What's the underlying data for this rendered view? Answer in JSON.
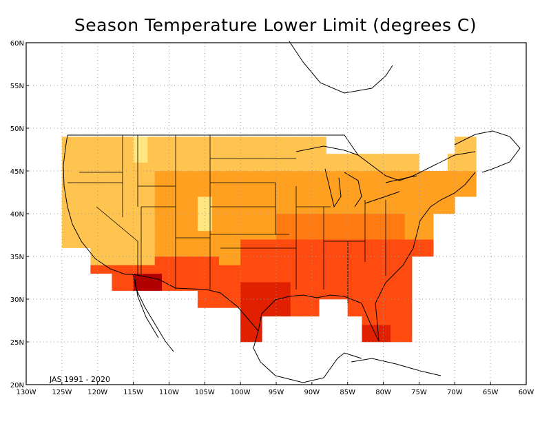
{
  "title": "Season Temperature Lower Limit (degrees C)",
  "annotation": "JAS 1991 - 2020",
  "lon_labels": [
    "130W",
    "125W",
    "120W",
    "115W",
    "110W",
    "105W",
    "100W",
    "95W",
    "90W",
    "85W",
    "80W",
    "75W",
    "70W",
    "65W",
    "60W"
  ],
  "lat_labels": [
    "20N",
    "25N",
    "30N",
    "35N",
    "40N",
    "45N",
    "50N",
    "55N",
    "60N"
  ],
  "colors": {
    "light_yellow": "#ffe680",
    "light_orange": "#ffc450",
    "orange": "#ffa020",
    "dark_orange": "#ff7a10",
    "red_orange": "#ff4a10",
    "red": "#e02000",
    "dark_red": "#b00000",
    "grid": "#9a9a9a",
    "boundary": "#000000"
  }
}
